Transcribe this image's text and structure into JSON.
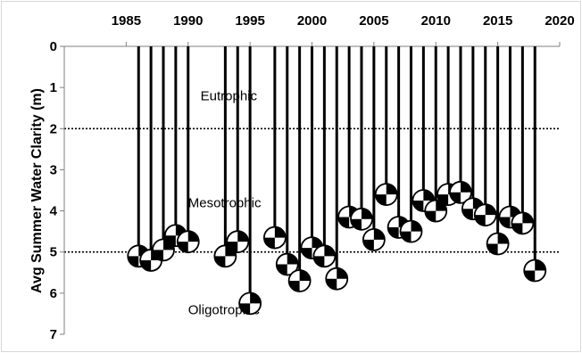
{
  "chart_data": {
    "type": "scatter",
    "title": "",
    "xlabel": "",
    "ylabel": "Avg Summer Water Clarity (m)",
    "xlim": [
      1980,
      2020
    ],
    "ylim": [
      0,
      7
    ],
    "y_inverted": true,
    "x_axis_position": "top",
    "xticks": [
      "1985",
      "1990",
      "1995",
      "2000",
      "2005",
      "2010",
      "2015",
      "2020"
    ],
    "yticks": [
      "0",
      "1",
      "2",
      "3",
      "4",
      "5",
      "6",
      "7"
    ],
    "marker": "secchi disk on line from surface",
    "thresholds": [
      {
        "y": 2,
        "style": "dotted"
      },
      {
        "y": 5,
        "style": "dotted"
      }
    ],
    "zones": [
      {
        "label": "Eutrophic",
        "y": 1.2,
        "x": 1991
      },
      {
        "label": "Mesotrophic",
        "y": 3.8,
        "x": 1990
      },
      {
        "label": "Oligotrophic",
        "y": 6.4,
        "x": 1990
      }
    ],
    "x": [
      1986,
      1987,
      1988,
      1989,
      1990,
      1993,
      1994,
      1995,
      1997,
      1998,
      1999,
      2000,
      2001,
      2002,
      2003,
      2004,
      2005,
      2006,
      2007,
      2008,
      2009,
      2010,
      2011,
      2012,
      2013,
      2014,
      2015,
      2016,
      2017,
      2018
    ],
    "y": [
      5.1,
      5.2,
      4.95,
      4.6,
      4.75,
      5.1,
      4.75,
      6.25,
      4.65,
      5.3,
      5.7,
      4.9,
      5.1,
      5.65,
      4.15,
      4.2,
      4.7,
      3.6,
      4.4,
      4.5,
      3.75,
      4.0,
      3.6,
      3.55,
      3.95,
      4.1,
      4.8,
      4.15,
      4.3,
      5.45
    ]
  }
}
